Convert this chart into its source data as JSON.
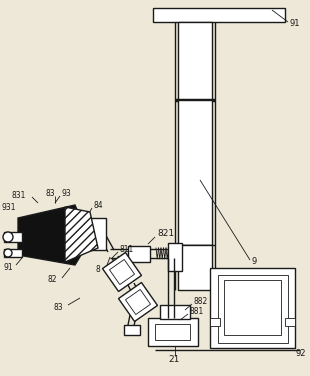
{
  "bg_color": "#ede8d8",
  "line_color": "#1a1a1a",
  "fill_dark": "#111111",
  "lw": 1.0,
  "tlw": 0.6,
  "figsize": [
    3.1,
    3.76
  ],
  "dpi": 100
}
